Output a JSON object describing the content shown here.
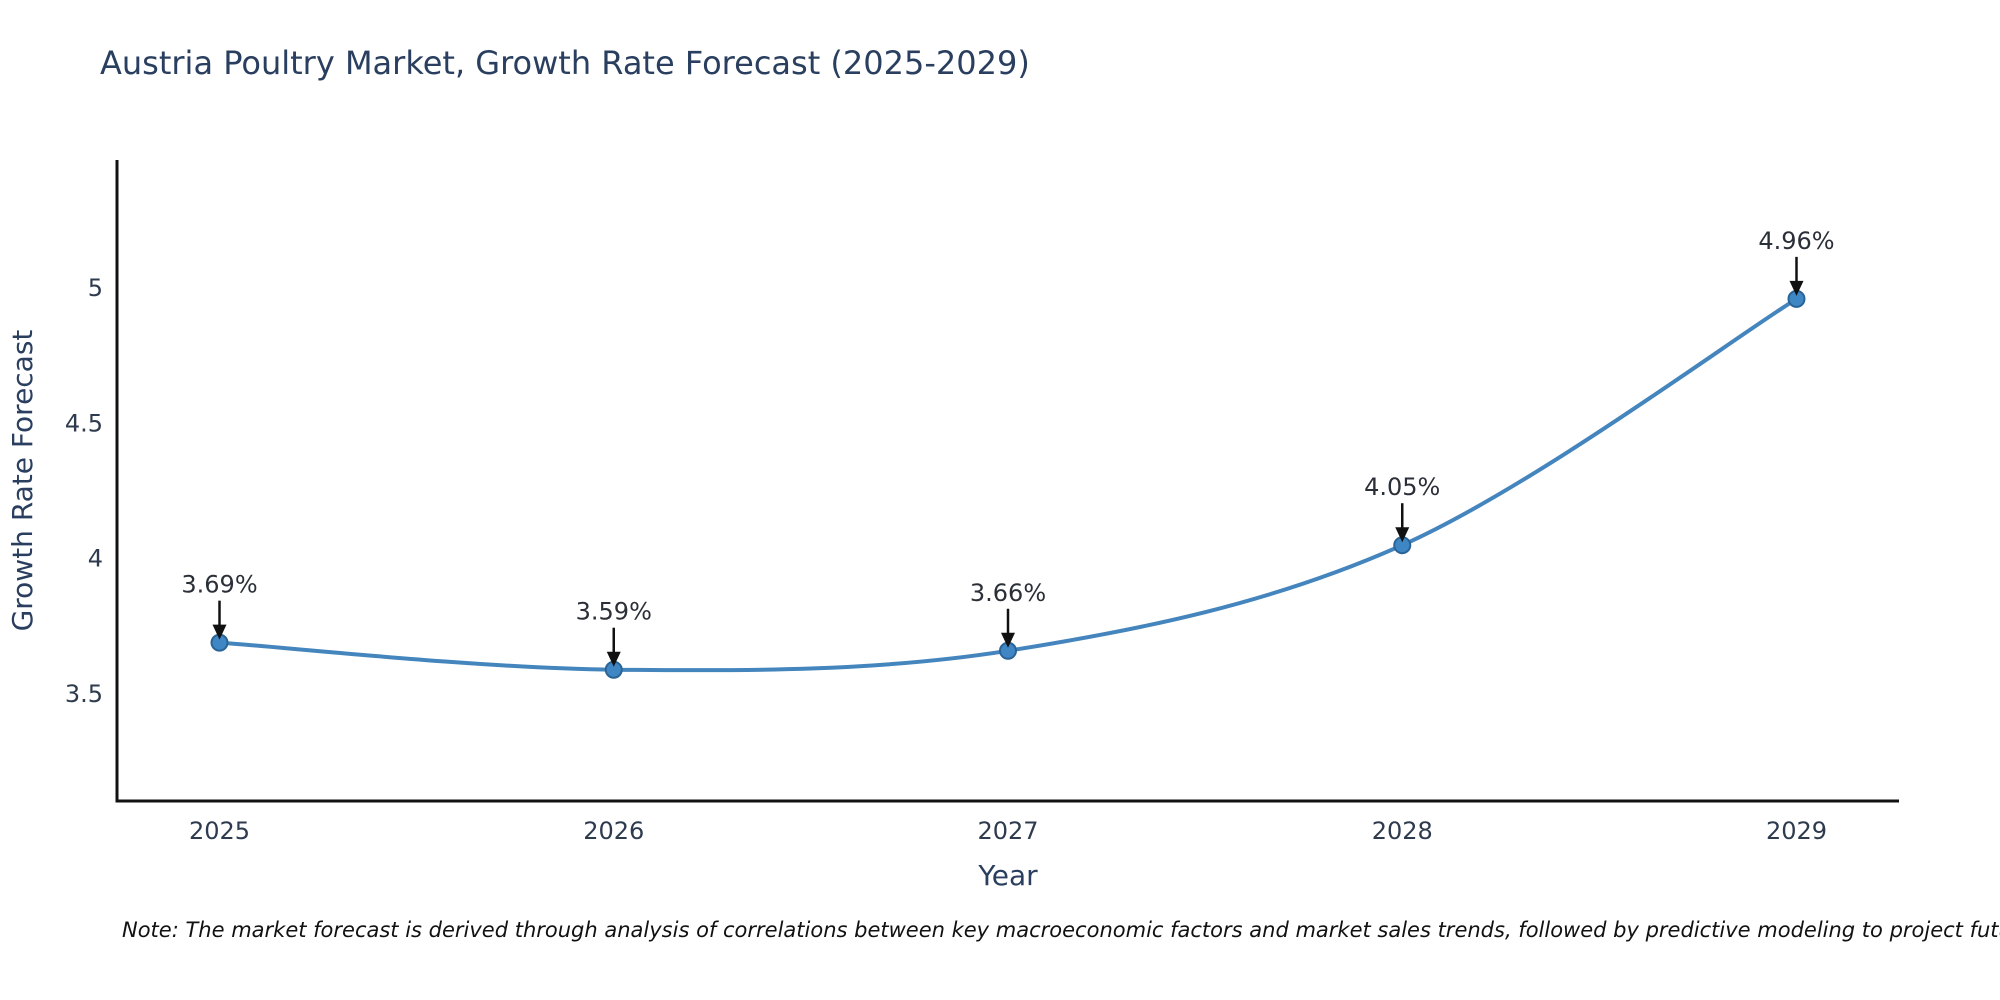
{
  "header": {
    "title": "Austria Poultry Market, Growth Rate Forecast (2025-2029)"
  },
  "footnote": {
    "text": "Note: The market forecast is derived through analysis of correlations between key macroeconomic factors and market sales trends, followed by predictive modeling to project future sales"
  },
  "chart_data": {
    "type": "line",
    "title": "Austria Poultry Market, Growth Rate Forecast (2025-2029)",
    "xlabel": "Year",
    "ylabel": "Growth Rate Forecast",
    "categories": [
      "2025",
      "2026",
      "2027",
      "2028",
      "2029"
    ],
    "x": [
      2025,
      2026,
      2027,
      2028,
      2029
    ],
    "values": [
      3.69,
      3.59,
      3.66,
      4.05,
      4.96
    ],
    "point_labels": [
      "3.69%",
      "3.59%",
      "3.66%",
      "4.05%",
      "4.96%"
    ],
    "yticks": [
      3.5,
      4,
      4.5,
      5
    ],
    "ytick_labels": [
      "3.5",
      "4",
      "4.5",
      "5"
    ],
    "xlim": [
      2024.74,
      2029.26
    ],
    "ylim": [
      3.105,
      5.473
    ],
    "grid": false,
    "legend": "none",
    "line_shape": "spline",
    "colors": {
      "line": "#4485bd",
      "marker_fill": "#3f86c5",
      "marker_edge": "#2a6496",
      "axis": "#111111",
      "title_text": "#2a3f5f",
      "tick_text": "#2e3b4e",
      "annotation_text": "#2b2f38",
      "arrow": "#111111",
      "background": "#ffffff"
    }
  }
}
